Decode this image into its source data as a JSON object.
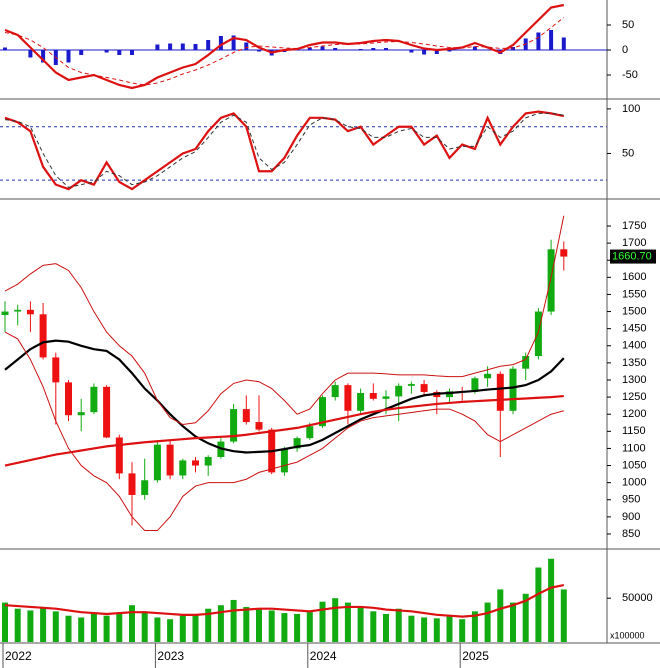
{
  "chart_data": [
    {
      "type": "macd",
      "ylim": [
        -96,
        100
      ],
      "yticks": [
        50,
        0,
        -50
      ],
      "histogram": {
        "color": "#1a1acc",
        "values": [
          5,
          0,
          -15,
          -25,
          -30,
          -25,
          -10,
          0,
          -5,
          -10,
          -10,
          0,
          11,
          13,
          13,
          12,
          20,
          28,
          29,
          15,
          -3,
          -11,
          -4,
          -1,
          5,
          7,
          4,
          0,
          2,
          4,
          4,
          1,
          -5,
          -9,
          -8,
          -3,
          1,
          7,
          -1,
          -8,
          6,
          23,
          35,
          40,
          25
        ]
      },
      "lines": [
        {
          "color": "#dd1111",
          "dashed": false,
          "values": [
            40,
            30,
            5,
            -20,
            -45,
            -60,
            -55,
            -50,
            -60,
            -70,
            -76,
            -70,
            -55,
            -45,
            -35,
            -28,
            -10,
            10,
            24,
            20,
            5,
            -5,
            0,
            2,
            10,
            15,
            15,
            12,
            14,
            18,
            20,
            18,
            10,
            3,
            0,
            2,
            5,
            14,
            5,
            -5,
            10,
            35,
            60,
            85,
            90
          ]
        },
        {
          "color": "#dd1111",
          "dashed": true,
          "values": [
            35,
            30,
            20,
            5,
            -15,
            -35,
            -45,
            -50,
            -55,
            -60,
            -66,
            -70,
            -66,
            -58,
            -48,
            -40,
            -30,
            -18,
            -5,
            5,
            8,
            6,
            4,
            3,
            5,
            8,
            11,
            12,
            12,
            14,
            16,
            17,
            15,
            12,
            8,
            5,
            4,
            7,
            6,
            3,
            4,
            12,
            25,
            45,
            65
          ]
        }
      ]
    },
    {
      "type": "oscillator",
      "ylim": [
        0,
        110
      ],
      "yticks": [
        100,
        50
      ],
      "reference_lines": [
        80,
        20
      ],
      "lines": [
        {
          "color": "#dd1111",
          "dashed": false,
          "values": [
            90,
            85,
            75,
            35,
            15,
            10,
            20,
            15,
            40,
            18,
            10,
            20,
            30,
            40,
            50,
            55,
            75,
            90,
            95,
            80,
            30,
            30,
            45,
            70,
            90,
            90,
            88,
            75,
            80,
            60,
            70,
            80,
            80,
            60,
            70,
            45,
            60,
            55,
            90,
            60,
            80,
            95,
            97,
            95,
            92
          ]
        },
        {
          "color": "#333333",
          "dashed": true,
          "values": [
            88,
            86,
            80,
            50,
            25,
            12,
            15,
            18,
            30,
            25,
            15,
            18,
            25,
            35,
            45,
            52,
            68,
            85,
            93,
            85,
            45,
            32,
            40,
            60,
            82,
            90,
            88,
            80,
            78,
            68,
            68,
            75,
            78,
            68,
            68,
            55,
            58,
            58,
            80,
            68,
            75,
            90,
            95,
            95,
            93
          ]
        }
      ]
    },
    {
      "type": "candlestick",
      "ylim": [
        809,
        1826
      ],
      "yticks": [
        850,
        900,
        950,
        1000,
        1050,
        1100,
        1150,
        1200,
        1250,
        1300,
        1350,
        1400,
        1450,
        1500,
        1550,
        1600,
        1650,
        1700,
        1750
      ],
      "up_color": "#11aa11",
      "down_color": "#ee1111",
      "open": [
        1490,
        1500,
        1505,
        1492,
        1366,
        1293,
        1197,
        1206,
        1280,
        1132,
        1027,
        964,
        1007,
        1111,
        1021,
        1065,
        1050,
        1075,
        1120,
        1215,
        1177,
        1155,
        1030,
        1100,
        1130,
        1165,
        1250,
        1285,
        1210,
        1262,
        1245,
        1252,
        1283,
        1288,
        1265,
        1250,
        1267,
        1265,
        1305,
        1318,
        1210,
        1333,
        1370,
        1500,
        1682
      ],
      "high": [
        1530,
        1520,
        1530,
        1525,
        1380,
        1300,
        1245,
        1290,
        1285,
        1140,
        1060,
        1070,
        1120,
        1125,
        1070,
        1075,
        1080,
        1130,
        1230,
        1255,
        1255,
        1160,
        1105,
        1135,
        1175,
        1255,
        1295,
        1290,
        1275,
        1290,
        1270,
        1290,
        1295,
        1300,
        1270,
        1275,
        1280,
        1310,
        1340,
        1325,
        1340,
        1380,
        1510,
        1710,
        1705
      ],
      "low": [
        1440,
        1460,
        1440,
        1360,
        1170,
        1180,
        1150,
        1200,
        1130,
        1010,
        875,
        950,
        1000,
        1010,
        1010,
        1030,
        1020,
        1070,
        1115,
        1170,
        1150,
        1025,
        1020,
        1090,
        1125,
        1160,
        1240,
        1170,
        1200,
        1240,
        1200,
        1180,
        1260,
        1255,
        1200,
        1230,
        1240,
        1260,
        1280,
        1075,
        1200,
        1300,
        1360,
        1490,
        1620
      ],
      "close": [
        1500,
        1505,
        1492,
        1366,
        1293,
        1197,
        1206,
        1280,
        1132,
        1027,
        964,
        1007,
        1111,
        1021,
        1065,
        1050,
        1075,
        1120,
        1215,
        1177,
        1155,
        1030,
        1100,
        1130,
        1165,
        1250,
        1285,
        1210,
        1262,
        1245,
        1252,
        1283,
        1288,
        1265,
        1250,
        1267,
        1265,
        1305,
        1318,
        1210,
        1333,
        1370,
        1500,
        1682,
        1660.7
      ],
      "last_price": {
        "value": 1660.7,
        "label": "1660.70"
      },
      "lines": [
        {
          "color": "#000000",
          "values": [
            1330,
            1360,
            1390,
            1410,
            1415,
            1412,
            1400,
            1390,
            1385,
            1360,
            1320,
            1275,
            1240,
            1200,
            1165,
            1135,
            1115,
            1100,
            1092,
            1088,
            1090,
            1092,
            1098,
            1105,
            1110,
            1125,
            1145,
            1165,
            1185,
            1200,
            1215,
            1230,
            1245,
            1255,
            1260,
            1262,
            1265,
            1268,
            1272,
            1275,
            1278,
            1285,
            1300,
            1325,
            1364
          ]
        },
        {
          "color": "#dd1111",
          "values": [
            1050,
            1058,
            1066,
            1074,
            1082,
            1088,
            1094,
            1100,
            1106,
            1110,
            1114,
            1118,
            1121,
            1124,
            1127,
            1130,
            1132,
            1134,
            1136,
            1140,
            1145,
            1150,
            1155,
            1160,
            1168,
            1176,
            1184,
            1192,
            1200,
            1207,
            1213,
            1218,
            1222,
            1226,
            1230,
            1233,
            1236,
            1238,
            1240,
            1242,
            1244,
            1246,
            1248,
            1250,
            1253
          ]
        },
        {
          "color": "#cc1111",
          "values": [
            1560,
            1580,
            1610,
            1635,
            1640,
            1620,
            1570,
            1500,
            1440,
            1400,
            1370,
            1320,
            1240,
            1190,
            1170,
            1175,
            1210,
            1260,
            1290,
            1300,
            1295,
            1275,
            1240,
            1200,
            1215,
            1260,
            1300,
            1320,
            1320,
            1320,
            1318,
            1315,
            1315,
            1315,
            1312,
            1310,
            1310,
            1320,
            1330,
            1340,
            1345,
            1360,
            1440,
            1600,
            1780
          ]
        },
        {
          "color": "#cc1111",
          "values": [
            1440,
            1420,
            1360,
            1280,
            1180,
            1100,
            1050,
            1020,
            1000,
            960,
            900,
            860,
            860,
            900,
            960,
            990,
            1000,
            1000,
            1000,
            1010,
            1030,
            1040,
            1050,
            1060,
            1080,
            1100,
            1130,
            1160,
            1180,
            1190,
            1195,
            1200,
            1205,
            1210,
            1215,
            1215,
            1200,
            1180,
            1140,
            1120,
            1140,
            1160,
            1180,
            1200,
            1210
          ]
        }
      ]
    },
    {
      "type": "bar",
      "ylim": [
        0,
        105000
      ],
      "yticks": [
        50000
      ],
      "multiplier_label": "x100000",
      "color": "#11aa11",
      "categories": [
        "2022",
        null,
        null,
        null,
        null,
        null,
        null,
        null,
        null,
        null,
        null,
        null,
        "2023",
        null,
        null,
        null,
        null,
        null,
        null,
        null,
        null,
        null,
        null,
        null,
        "2024",
        null,
        null,
        null,
        null,
        null,
        null,
        null,
        null,
        null,
        null,
        null,
        "2025",
        null,
        null,
        null,
        null,
        null,
        null,
        null,
        null
      ],
      "values": [
        45000,
        38000,
        36000,
        40000,
        35000,
        30000,
        28000,
        32000,
        30000,
        33000,
        42000,
        35000,
        28000,
        26000,
        30000,
        32000,
        38000,
        42000,
        48000,
        40000,
        38000,
        36000,
        33000,
        32000,
        34000,
        46000,
        50000,
        45000,
        40000,
        35000,
        32000,
        38000,
        30000,
        28000,
        27000,
        29000,
        26000,
        35000,
        45000,
        60000,
        45000,
        55000,
        85000,
        95000,
        60000
      ],
      "lines": [
        {
          "color": "#dd1111",
          "values": [
            42000,
            41000,
            40000,
            39000,
            38000,
            36000,
            34000,
            33000,
            32000,
            33000,
            34000,
            34000,
            33000,
            32000,
            31000,
            31000,
            32000,
            34000,
            36000,
            37000,
            38000,
            38000,
            37000,
            36000,
            35000,
            37000,
            39000,
            40000,
            40000,
            39000,
            37000,
            36000,
            35000,
            33000,
            31000,
            30000,
            29000,
            30000,
            33000,
            38000,
            42000,
            47000,
            55000,
            62000,
            65000
          ]
        }
      ]
    }
  ]
}
